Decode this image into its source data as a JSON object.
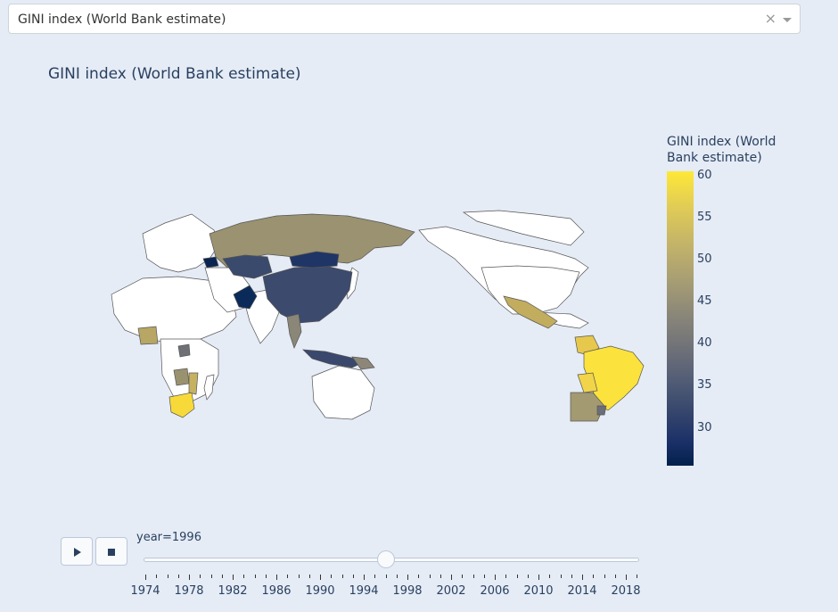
{
  "dropdown": {
    "selected": "GINI index (World Bank estimate)",
    "clear_symbol": "×",
    "clear_icon": "clear-x-icon",
    "caret_icon": "caret-down-icon"
  },
  "chart_title": "GINI index (World Bank estimate)",
  "chart_data": {
    "type": "choropleth",
    "title": "GINI index (World Bank estimate)",
    "year": 1996,
    "colorbar": {
      "title": "GINI index (World Bank estimate)",
      "ticks": [
        "60",
        "55",
        "50",
        "45",
        "40",
        "35",
        "30"
      ],
      "range": [
        25.5,
        60.5
      ],
      "colorscale": "cividis"
    },
    "regions": [
      {
        "name": "Russia",
        "value": 46.0
      },
      {
        "name": "China",
        "value": 35.5
      },
      {
        "name": "Mongolia",
        "value": 33.0
      },
      {
        "name": "Kazakhstan",
        "value": 35.0
      },
      {
        "name": "Pakistan",
        "value": 28.0
      },
      {
        "name": "Thailand",
        "value": 43.0
      },
      {
        "name": "Indonesia",
        "value": 35.0
      },
      {
        "name": "Papua New Guinea",
        "value": 46.0
      },
      {
        "name": "Belarus",
        "value": 28.0
      },
      {
        "name": "Mexico",
        "value": 48.5
      },
      {
        "name": "Guatemala",
        "value": 55.0
      },
      {
        "name": "Venezuela",
        "value": 49.0
      },
      {
        "name": "Brazil",
        "value": 60.0
      },
      {
        "name": "Bolivia",
        "value": 58.0
      },
      {
        "name": "Argentina",
        "value": 49.5
      },
      {
        "name": "Uruguay",
        "value": 42.0
      },
      {
        "name": "South Africa",
        "value": 59.0
      },
      {
        "name": "Zambia",
        "value": 49.0
      },
      {
        "name": "Mozambique",
        "value": 51.0
      },
      {
        "name": "Nigeria",
        "value": 51.0
      },
      {
        "name": "Ethiopia",
        "value": 40.0
      }
    ]
  },
  "controls": {
    "play_icon": "play-icon",
    "stop_icon": "stop-icon"
  },
  "slider": {
    "label": "year=1996",
    "current_value": 1996,
    "tick_labels": [
      "1974",
      "1978",
      "1982",
      "1986",
      "1990",
      "1994",
      "1998",
      "2002",
      "2006",
      "2010",
      "2014",
      "2018"
    ]
  }
}
